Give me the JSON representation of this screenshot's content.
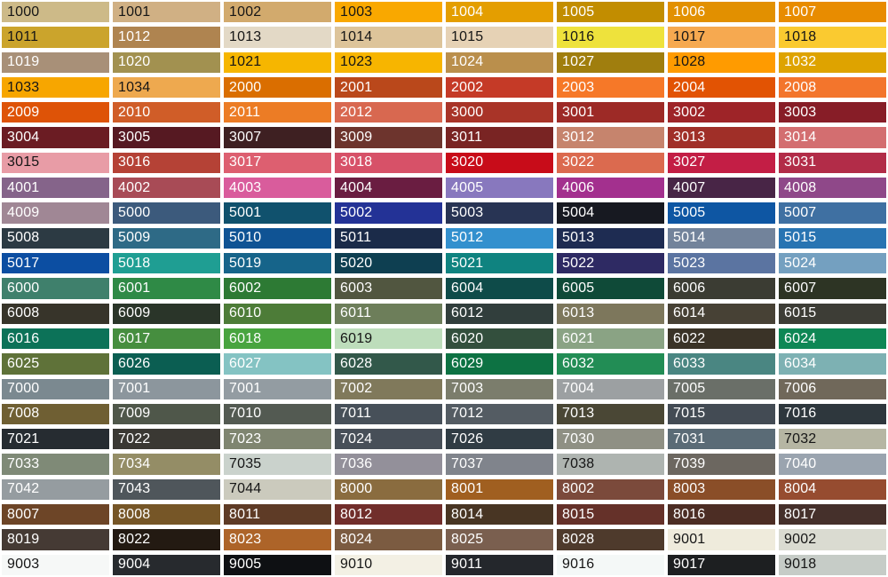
{
  "grid": {
    "background_color": "#ffffff",
    "dark_text_color": "#161616",
    "light_text_color": "#ffffff",
    "columns": 8,
    "rows": 23
  },
  "chart_data": {
    "type": "table",
    "description_of_cell_format": [
      "ral_code",
      "swatch_hex",
      "label_tone(d=dark,l=light)"
    ],
    "columns": 8,
    "rows": 23,
    "cells": [
      [
        "1000",
        "#CDBA88",
        "d"
      ],
      [
        "1001",
        "#D0B084",
        "d"
      ],
      [
        "1002",
        "#D2AA6D",
        "d"
      ],
      [
        "1003",
        "#F9A800",
        "d"
      ],
      [
        "1004",
        "#E49E00",
        "l"
      ],
      [
        "1005",
        "#C28D00",
        "l"
      ],
      [
        "1006",
        "#E29000",
        "l"
      ],
      [
        "1007",
        "#E88C00",
        "l"
      ],
      [
        "1011",
        "#CBA42C",
        "d"
      ],
      [
        "1012",
        "#AF8450",
        "l"
      ],
      [
        "1013",
        "#E3D9C6",
        "d"
      ],
      [
        "1014",
        "#DDC49A",
        "d"
      ],
      [
        "1015",
        "#E6D2B5",
        "d"
      ],
      [
        "1016",
        "#EEE23C",
        "d"
      ],
      [
        "1017",
        "#F6A950",
        "d"
      ],
      [
        "1018",
        "#FACA30",
        "d"
      ],
      [
        "1019",
        "#A89078",
        "l"
      ],
      [
        "1020",
        "#A29150",
        "l"
      ],
      [
        "1021",
        "#F6B600",
        "d"
      ],
      [
        "1023",
        "#F7B500",
        "d"
      ],
      [
        "1024",
        "#BA8F4C",
        "l"
      ],
      [
        "1027",
        "#A07E0E",
        "l"
      ],
      [
        "1028",
        "#FF9B00",
        "d"
      ],
      [
        "1032",
        "#DEA300",
        "l"
      ],
      [
        "1033",
        "#F7A600",
        "d"
      ],
      [
        "1034",
        "#EEA94F",
        "d"
      ],
      [
        "2000",
        "#DA6E00",
        "l"
      ],
      [
        "2001",
        "#BA481B",
        "l"
      ],
      [
        "2002",
        "#C53A27",
        "l"
      ],
      [
        "2003",
        "#F67828",
        "l"
      ],
      [
        "2004",
        "#E25303",
        "l"
      ],
      [
        "2008",
        "#F3752C",
        "l"
      ],
      [
        "2009",
        "#DE5307",
        "l"
      ],
      [
        "2010",
        "#D05D28",
        "l"
      ],
      [
        "2011",
        "#EC7C25",
        "l"
      ],
      [
        "2012",
        "#D86850",
        "l"
      ],
      [
        "3000",
        "#A93428",
        "l"
      ],
      [
        "3001",
        "#9D2A26",
        "l"
      ],
      [
        "3002",
        "#9E2428",
        "l"
      ],
      [
        "3003",
        "#871D27",
        "l"
      ],
      [
        "3004",
        "#6B1C23",
        "l"
      ],
      [
        "3005",
        "#561922",
        "l"
      ],
      [
        "3007",
        "#3E2022",
        "l"
      ],
      [
        "3009",
        "#6D342D",
        "l"
      ],
      [
        "3011",
        "#792423",
        "l"
      ],
      [
        "3012",
        "#C6846D",
        "l"
      ],
      [
        "3013",
        "#A02F28",
        "l"
      ],
      [
        "3014",
        "#D36E70",
        "l"
      ],
      [
        "3015",
        "#E89CA6",
        "d"
      ],
      [
        "3016",
        "#B54236",
        "l"
      ],
      [
        "3017",
        "#DD5F70",
        "l"
      ],
      [
        "3018",
        "#D75168",
        "l"
      ],
      [
        "3020",
        "#C80C19",
        "l"
      ],
      [
        "3022",
        "#DB6A4F",
        "l"
      ],
      [
        "3027",
        "#C31E45",
        "l"
      ],
      [
        "3031",
        "#B22C48",
        "l"
      ],
      [
        "4001",
        "#85648A",
        "l"
      ],
      [
        "4002",
        "#A84B56",
        "l"
      ],
      [
        "4003",
        "#D95C9C",
        "l"
      ],
      [
        "4004",
        "#6A1D41",
        "l"
      ],
      [
        "4005",
        "#8878BE",
        "l"
      ],
      [
        "4006",
        "#A3308E",
        "l"
      ],
      [
        "4007",
        "#482546",
        "l"
      ],
      [
        "4008",
        "#8F4889",
        "l"
      ],
      [
        "4009",
        "#A08795",
        "l"
      ],
      [
        "5000",
        "#3C5A7C",
        "l"
      ],
      [
        "5001",
        "#10516D",
        "l"
      ],
      [
        "5002",
        "#233296",
        "l"
      ],
      [
        "5003",
        "#283454",
        "l"
      ],
      [
        "5004",
        "#171921",
        "l"
      ],
      [
        "5005",
        "#0E56A3",
        "l"
      ],
      [
        "5007",
        "#3F70A2",
        "l"
      ],
      [
        "5008",
        "#2C3A43",
        "l"
      ],
      [
        "5009",
        "#2E6A86",
        "l"
      ],
      [
        "5010",
        "#0F5394",
        "l"
      ],
      [
        "5011",
        "#1B2B49",
        "l"
      ],
      [
        "5012",
        "#3390CE",
        "l"
      ],
      [
        "5013",
        "#1E2C52",
        "l"
      ],
      [
        "5014",
        "#72839B",
        "l"
      ],
      [
        "5015",
        "#2874B2",
        "l"
      ],
      [
        "5017",
        "#0C4EA2",
        "l"
      ],
      [
        "5018",
        "#1F9E93",
        "l"
      ],
      [
        "5019",
        "#16648A",
        "l"
      ],
      [
        "5020",
        "#0E3F51",
        "l"
      ],
      [
        "5021",
        "#0F8380",
        "l"
      ],
      [
        "5022",
        "#2E2A63",
        "l"
      ],
      [
        "5023",
        "#5B74A1",
        "l"
      ],
      [
        "5024",
        "#74A0C0",
        "l"
      ],
      [
        "6000",
        "#3F806C",
        "l"
      ],
      [
        "6001",
        "#2F8A46",
        "l"
      ],
      [
        "6002",
        "#2D7A34",
        "l"
      ],
      [
        "6003",
        "#515640",
        "l"
      ],
      [
        "6004",
        "#0E4B49",
        "l"
      ],
      [
        "6005",
        "#0F4A38",
        "l"
      ],
      [
        "6006",
        "#3B3C33",
        "l"
      ],
      [
        "6007",
        "#2D3424",
        "l"
      ],
      [
        "6008",
        "#37342A",
        "l"
      ],
      [
        "6009",
        "#2A3529",
        "l"
      ],
      [
        "6010",
        "#4D7C38",
        "l"
      ],
      [
        "6011",
        "#6D7E5A",
        "l"
      ],
      [
        "6012",
        "#313E3C",
        "l"
      ],
      [
        "6013",
        "#7D775C",
        "l"
      ],
      [
        "6014",
        "#474135",
        "l"
      ],
      [
        "6015",
        "#3D3D36",
        "l"
      ],
      [
        "6016",
        "#0C7258",
        "l"
      ],
      [
        "6017",
        "#468E3F",
        "l"
      ],
      [
        "6018",
        "#48A43F",
        "l"
      ],
      [
        "6019",
        "#BDDDBB",
        "d"
      ],
      [
        "6020",
        "#334F3D",
        "l"
      ],
      [
        "6021",
        "#8AA384",
        "l"
      ],
      [
        "6022",
        "#3A3327",
        "l"
      ],
      [
        "6024",
        "#0E8755",
        "l"
      ],
      [
        "6025",
        "#5F7239",
        "l"
      ],
      [
        "6026",
        "#0B5E52",
        "l"
      ],
      [
        "6027",
        "#84C3C3",
        "l"
      ],
      [
        "6028",
        "#32584A",
        "l"
      ],
      [
        "6029",
        "#0D7243",
        "l"
      ],
      [
        "6032",
        "#228D55",
        "l"
      ],
      [
        "6033",
        "#4A8682",
        "l"
      ],
      [
        "6034",
        "#7DB1B3",
        "l"
      ],
      [
        "7000",
        "#7B8990",
        "l"
      ],
      [
        "7001",
        "#8C969D",
        "l"
      ],
      [
        "7001",
        "#939CA2",
        "l"
      ],
      [
        "7002",
        "#80795B",
        "l"
      ],
      [
        "7003",
        "#7B7D6C",
        "l"
      ],
      [
        "7004",
        "#9CA0A2",
        "l"
      ],
      [
        "7005",
        "#6A6F68",
        "l"
      ],
      [
        "7006",
        "#70685A",
        "l"
      ],
      [
        "7008",
        "#6F5F33",
        "l"
      ],
      [
        "7009",
        "#4F574A",
        "l"
      ],
      [
        "7010",
        "#535A52",
        "l"
      ],
      [
        "7011",
        "#475059",
        "l"
      ],
      [
        "7012",
        "#545C63",
        "l"
      ],
      [
        "7013",
        "#4A4735",
        "l"
      ],
      [
        "7015",
        "#434B54",
        "l"
      ],
      [
        "7016",
        "#2E373D",
        "l"
      ],
      [
        "7021",
        "#262C31",
        "l"
      ],
      [
        "7022",
        "#3A3833",
        "l"
      ],
      [
        "7023",
        "#7F8570",
        "l"
      ],
      [
        "7024",
        "#474F58",
        "l"
      ],
      [
        "7026",
        "#303C44",
        "l"
      ],
      [
        "7030",
        "#8F9084",
        "l"
      ],
      [
        "7031",
        "#5A6B76",
        "l"
      ],
      [
        "7032",
        "#B6B6A3",
        "d"
      ],
      [
        "7033",
        "#7F8A77",
        "l"
      ],
      [
        "7034",
        "#948D66",
        "l"
      ],
      [
        "7035",
        "#CAD2CC",
        "d"
      ],
      [
        "7036",
        "#93909A",
        "l"
      ],
      [
        "7037",
        "#80848C",
        "l"
      ],
      [
        "7038",
        "#AEB4B0",
        "d"
      ],
      [
        "7039",
        "#6C6760",
        "l"
      ],
      [
        "7040",
        "#9AA4AF",
        "l"
      ],
      [
        "7042",
        "#959CA0",
        "l"
      ],
      [
        "7043",
        "#4F565B",
        "l"
      ],
      [
        "7044",
        "#CBCABD",
        "d"
      ],
      [
        "8000",
        "#8A6C3F",
        "l"
      ],
      [
        "8001",
        "#A05F20",
        "l"
      ],
      [
        "8002",
        "#7B4A3B",
        "l"
      ],
      [
        "8003",
        "#8A4E28",
        "l"
      ],
      [
        "8004",
        "#964C30",
        "l"
      ],
      [
        "8007",
        "#6D4527",
        "l"
      ],
      [
        "8008",
        "#765627",
        "l"
      ],
      [
        "8011",
        "#5E3B26",
        "l"
      ],
      [
        "8012",
        "#712E2B",
        "l"
      ],
      [
        "8014",
        "#483523",
        "l"
      ],
      [
        "8015",
        "#653129",
        "l"
      ],
      [
        "8016",
        "#4C2D24",
        "l"
      ],
      [
        "8017",
        "#45302B",
        "l"
      ],
      [
        "8019",
        "#453A34",
        "l"
      ],
      [
        "8022",
        "#231A12",
        "l"
      ],
      [
        "8023",
        "#AD6429",
        "l"
      ],
      [
        "8024",
        "#7B5B41",
        "l"
      ],
      [
        "8025",
        "#7A5F4F",
        "l"
      ],
      [
        "8028",
        "#4E3A2C",
        "l"
      ],
      [
        "9001",
        "#EFEBDC",
        "d"
      ],
      [
        "9002",
        "#DADBD1",
        "d"
      ],
      [
        "9003",
        "#F6F8F7",
        "d"
      ],
      [
        "9004",
        "#272A2E",
        "l"
      ],
      [
        "9005",
        "#0E1013",
        "l"
      ],
      [
        "9010",
        "#F3F0E4",
        "d"
      ],
      [
        "9011",
        "#24272C",
        "l"
      ],
      [
        "9016",
        "#F4F8F7",
        "d"
      ],
      [
        "9017",
        "#1D1F21",
        "l"
      ],
      [
        "9018",
        "#C6CCC7",
        "d"
      ]
    ]
  }
}
